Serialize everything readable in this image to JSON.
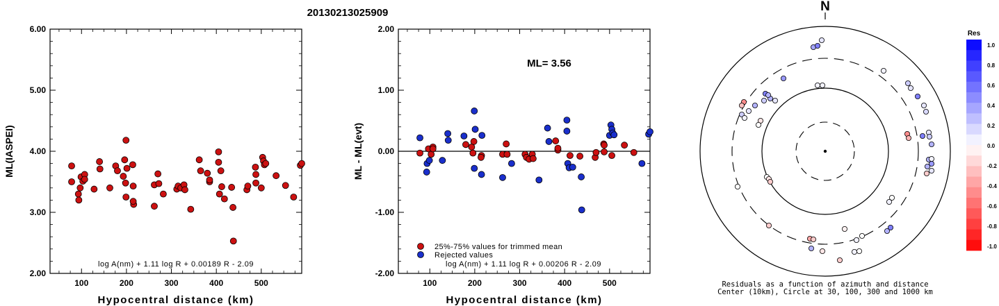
{
  "event_id": "20130213025909",
  "charts": [
    {
      "type": "scatter",
      "ylabel": "ML(IASPEI)",
      "xlabel": "Hypocentral distance (km)",
      "xlim": [
        30,
        590
      ],
      "ylim": [
        2.0,
        6.0
      ],
      "xticks": [
        100,
        200,
        300,
        400,
        500
      ],
      "yticks": [
        "2.00",
        "3.00",
        "4.00",
        "5.00",
        "6.00"
      ],
      "formula": "log A(nm) + 1.11 log R + 0.00189 R - 2.09",
      "points": [
        [
          78,
          3.76
        ],
        [
          78,
          3.5
        ],
        [
          93,
          3.3
        ],
        [
          94,
          3.2
        ],
        [
          97,
          3.4
        ],
        [
          99,
          3.58
        ],
        [
          103,
          3.51
        ],
        [
          107,
          3.62
        ],
        [
          107,
          3.54
        ],
        [
          128,
          3.38
        ],
        [
          140,
          3.83
        ],
        [
          141,
          3.71
        ],
        [
          163,
          3.4
        ],
        [
          176,
          3.76
        ],
        [
          180,
          3.68
        ],
        [
          193,
          3.59
        ],
        [
          196,
          3.86
        ],
        [
          198,
          3.48
        ],
        [
          199,
          3.25
        ],
        [
          201,
          3.72
        ],
        [
          199,
          4.18
        ],
        [
          214,
          3.78
        ],
        [
          215,
          3.43
        ],
        [
          216,
          3.13
        ],
        [
          215,
          3.18
        ],
        [
          262,
          3.45
        ],
        [
          262,
          3.1
        ],
        [
          270,
          3.63
        ],
        [
          272,
          3.47
        ],
        [
          282,
          3.3
        ],
        [
          312,
          3.38
        ],
        [
          315,
          3.43
        ],
        [
          321,
          3.4
        ],
        [
          328,
          3.45
        ],
        [
          330,
          3.37
        ],
        [
          343,
          3.05
        ],
        [
          362,
          3.86
        ],
        [
          365,
          3.68
        ],
        [
          380,
          3.64
        ],
        [
          385,
          3.5
        ],
        [
          385,
          3.53
        ],
        [
          405,
          3.99
        ],
        [
          405,
          3.82
        ],
        [
          407,
          3.3
        ],
        [
          410,
          3.68
        ],
        [
          412,
          3.42
        ],
        [
          418,
          3.22
        ],
        [
          434,
          3.41
        ],
        [
          437,
          3.08
        ],
        [
          438,
          2.53
        ],
        [
          468,
          3.37
        ],
        [
          470,
          3.43
        ],
        [
          487,
          3.74
        ],
        [
          488,
          3.62
        ],
        [
          488,
          3.48
        ],
        [
          500,
          3.4
        ],
        [
          503,
          3.9
        ],
        [
          505,
          3.84
        ],
        [
          507,
          3.78
        ],
        [
          510,
          3.8
        ],
        [
          533,
          3.6
        ],
        [
          554,
          3.44
        ],
        [
          572,
          3.25
        ],
        [
          587,
          3.77
        ],
        [
          590,
          3.8
        ]
      ]
    },
    {
      "type": "scatter",
      "ylabel": "ML - ML(evt)",
      "xlabel": "Hypocentral distance (km)",
      "xlim": [
        30,
        590
      ],
      "ylim": [
        -2.0,
        2.0
      ],
      "xticks": [
        100,
        200,
        300,
        400,
        500
      ],
      "yticks": [
        "-2.00",
        "-1.00",
        "0.00",
        "1.00",
        "2.00"
      ],
      "ml_label": "ML= 3.56",
      "formula": "log A(nm) + 1.11 log R + 0.00206 R - 2.09",
      "legend": [
        "25%-75% values for trimmed mean",
        "Rejected values"
      ],
      "series": [
        {
          "name": "25%-75% values for trimmed mean",
          "color": "#cc1111",
          "points": [
            [
              78,
              -0.03
            ],
            [
              97,
              0.04
            ],
            [
              103,
              -0.05
            ],
            [
              107,
              0.07
            ],
            [
              107,
              0.04
            ],
            [
              180,
              0.11
            ],
            [
              193,
              0.07
            ],
            [
              196,
              -0.03
            ],
            [
              198,
              0.16
            ],
            [
              215,
              -0.07
            ],
            [
              214,
              -0.1
            ],
            [
              262,
              -0.05
            ],
            [
              270,
              0.12
            ],
            [
              272,
              -0.05
            ],
            [
              312,
              -0.05
            ],
            [
              315,
              -0.1
            ],
            [
              321,
              -0.13
            ],
            [
              328,
              -0.05
            ],
            [
              330,
              -0.12
            ],
            [
              380,
              0.17
            ],
            [
              385,
              0.02
            ],
            [
              385,
              0.05
            ],
            [
              412,
              -0.07
            ],
            [
              434,
              -0.08
            ],
            [
              468,
              -0.1
            ],
            [
              470,
              -0.02
            ],
            [
              487,
              0.12
            ],
            [
              488,
              0.1
            ],
            [
              488,
              -0.01
            ],
            [
              505,
              -0.07
            ],
            [
              533,
              0.1
            ],
            [
              554,
              -0.02
            ]
          ]
        },
        {
          "name": "Rejected values",
          "color": "#1a2fcc",
          "points": [
            [
              78,
              0.22
            ],
            [
              93,
              -0.34
            ],
            [
              94,
              -0.2
            ],
            [
              99,
              -0.15
            ],
            [
              128,
              -0.15
            ],
            [
              140,
              0.29
            ],
            [
              141,
              0.18
            ],
            [
              176,
              0.25
            ],
            [
              199,
              0.66
            ],
            [
              201,
              0.36
            ],
            [
              199,
              -0.28
            ],
            [
              216,
              0.26
            ],
            [
              215,
              -0.38
            ],
            [
              262,
              -0.43
            ],
            [
              282,
              -0.2
            ],
            [
              343,
              -0.47
            ],
            [
              362,
              0.38
            ],
            [
              365,
              0.16
            ],
            [
              405,
              0.51
            ],
            [
              405,
              0.33
            ],
            [
              407,
              -0.2
            ],
            [
              410,
              -0.27
            ],
            [
              418,
              -0.26
            ],
            [
              437,
              -0.42
            ],
            [
              438,
              -0.96
            ],
            [
              500,
              0.26
            ],
            [
              503,
              0.43
            ],
            [
              505,
              0.36
            ],
            [
              507,
              0.3
            ],
            [
              510,
              0.27
            ],
            [
              572,
              -0.2
            ],
            [
              587,
              0.28
            ],
            [
              590,
              0.32
            ]
          ]
        }
      ]
    }
  ],
  "polar": {
    "north_label": "N",
    "caption_line1": "Residuals as a function of azimuth and distance",
    "caption_line2": "Center (10km), Circle at 30, 100, 300 and 1000 km",
    "points": [
      [
        1170,
        68,
        0.35
      ],
      [
        1176,
        66,
        0.5
      ],
      [
        1182,
        58,
        0.1
      ],
      [
        1271,
        102,
        0.05
      ],
      [
        1127,
        113,
        0.4
      ],
      [
        1176,
        123,
        0.05
      ],
      [
        1183,
        123,
        0.05
      ],
      [
        1306,
        120,
        0.2
      ],
      [
        1310,
        127,
        0.1
      ],
      [
        1320,
        139,
        0.5
      ],
      [
        1101,
        135,
        0.5
      ],
      [
        1108,
        142,
        0.3
      ],
      [
        1099,
        145,
        0.2
      ],
      [
        1105,
        137,
        0.3
      ],
      [
        1115,
        145,
        0.1
      ],
      [
        1086,
        152,
        0.3
      ],
      [
        1070,
        147,
        -0.45
      ],
      [
        1067,
        152,
        -0.25
      ],
      [
        1077,
        160,
        0.1
      ],
      [
        1067,
        165,
        0.2
      ],
      [
        1071,
        170,
        0.05
      ],
      [
        1094,
        174,
        -0.1
      ],
      [
        1091,
        180,
        0.0
      ],
      [
        1329,
        152,
        0.1
      ],
      [
        1332,
        161,
        0.15
      ],
      [
        1305,
        193,
        -0.45
      ],
      [
        1307,
        199,
        -0.3
      ],
      [
        1327,
        196,
        0.5
      ],
      [
        1336,
        191,
        0.1
      ],
      [
        1337,
        197,
        0.2
      ],
      [
        1340,
        208,
        0.3
      ],
      [
        1336,
        230,
        0.3
      ],
      [
        1340,
        229,
        0.05
      ],
      [
        1340,
        236,
        0.4
      ],
      [
        1334,
        240,
        0.3
      ],
      [
        1340,
        246,
        0.1
      ],
      [
        1333,
        250,
        -0.2
      ],
      [
        1103,
        255,
        0.0
      ],
      [
        1106,
        258,
        -0.1
      ],
      [
        1108,
        262,
        -0.2
      ],
      [
        1061,
        269,
        0.0
      ],
      [
        1283,
        285,
        0.0
      ],
      [
        1279,
        291,
        0.05
      ],
      [
        1281,
        328,
        0.5
      ],
      [
        1276,
        333,
        0.3
      ],
      [
        1106,
        325,
        -0.2
      ],
      [
        1165,
        344,
        -0.35
      ],
      [
        1170,
        345,
        -0.2
      ],
      [
        1167,
        358,
        0.3
      ],
      [
        1183,
        362,
        -0.1
      ],
      [
        1215,
        330,
        -0.05
      ],
      [
        1232,
        346,
        0.05
      ],
      [
        1240,
        340,
        0.0
      ],
      [
        1229,
        363,
        0.05
      ],
      [
        1236,
        362,
        0.0
      ],
      [
        1208,
        375,
        -0.2
      ]
    ]
  },
  "colorbar": {
    "title": "Res",
    "labels": [
      "1.0",
      "0.8",
      "0.6",
      "0.4",
      "0.2",
      "0.0",
      "-0.2",
      "-0.4",
      "-0.6",
      "-0.8",
      "-1.0"
    ]
  }
}
